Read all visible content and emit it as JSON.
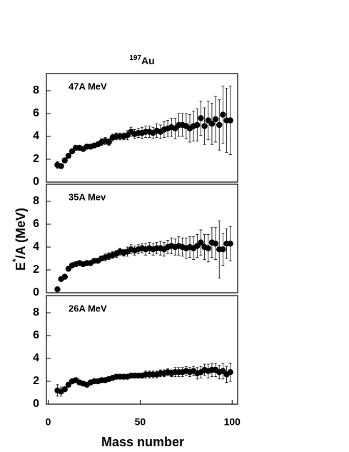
{
  "title_sup": "197",
  "title": "Au",
  "ylabel": [
    "E",
    "*",
    "/A (MeV)"
  ],
  "xlabel": "Mass number",
  "chart_data": [
    {
      "type": "scatter",
      "annotation": "47A MeV",
      "x": [
        5,
        7,
        9,
        11,
        13,
        15,
        17,
        19,
        21,
        23,
        25,
        27,
        29,
        31,
        33,
        35,
        37,
        39,
        41,
        43,
        45,
        47,
        49,
        51,
        53,
        55,
        57,
        59,
        61,
        63,
        65,
        67,
        69,
        71,
        73,
        75,
        77,
        79,
        81,
        83,
        85,
        87,
        89,
        91,
        93,
        95,
        97,
        99
      ],
      "values": [
        1.5,
        1.4,
        1.9,
        2.3,
        2.7,
        3.0,
        3.0,
        2.9,
        3.1,
        3.1,
        3.2,
        3.3,
        3.5,
        3.6,
        3.5,
        3.9,
        4.0,
        4.0,
        4.0,
        4.1,
        4.4,
        4.2,
        4.3,
        4.3,
        4.4,
        4.4,
        4.3,
        4.5,
        4.4,
        4.6,
        4.7,
        4.8,
        4.7,
        5.0,
        5.0,
        4.9,
        4.7,
        4.9,
        5.0,
        5.6,
        4.9,
        5.4,
        5.1,
        5.5,
        5.0,
        5.9,
        5.4,
        5.4
      ],
      "errors": [
        0.3,
        0.2,
        0.2,
        0.2,
        0.2,
        0.2,
        0.2,
        0.2,
        0.2,
        0.2,
        0.2,
        0.2,
        0.3,
        0.3,
        0.3,
        0.3,
        0.3,
        0.3,
        0.3,
        0.4,
        0.4,
        0.4,
        0.4,
        0.5,
        0.5,
        0.5,
        0.5,
        0.6,
        0.6,
        0.7,
        0.7,
        0.8,
        0.9,
        1.0,
        1.0,
        1.1,
        1.2,
        1.3,
        1.4,
        1.5,
        1.6,
        1.7,
        1.8,
        2.0,
        2.2,
        2.5,
        2.8,
        3.0
      ],
      "xlim": [
        -1,
        103
      ],
      "ylim": [
        0,
        9.5
      ],
      "yticks": [
        0,
        2,
        4,
        6,
        8
      ],
      "color": "#000000"
    },
    {
      "type": "scatter",
      "annotation": "35A Mev",
      "x": [
        5,
        7,
        9,
        11,
        13,
        15,
        17,
        19,
        21,
        23,
        25,
        27,
        29,
        31,
        33,
        35,
        37,
        39,
        41,
        43,
        45,
        47,
        49,
        51,
        53,
        55,
        57,
        59,
        61,
        63,
        65,
        67,
        69,
        71,
        73,
        75,
        77,
        79,
        81,
        83,
        85,
        87,
        89,
        91,
        93,
        95,
        97,
        99
      ],
      "values": [
        0.3,
        1.2,
        1.4,
        2.1,
        2.4,
        2.5,
        2.6,
        2.5,
        2.6,
        2.6,
        2.8,
        2.8,
        3.0,
        3.1,
        3.2,
        3.3,
        3.4,
        3.6,
        3.5,
        3.6,
        3.8,
        3.7,
        3.8,
        3.9,
        3.8,
        3.9,
        3.8,
        3.9,
        3.9,
        3.8,
        4.0,
        4.1,
        4.0,
        4.1,
        4.0,
        3.9,
        4.0,
        3.9,
        4.1,
        4.4,
        4.0,
        3.9,
        4.4,
        4.3,
        3.8,
        3.8,
        4.3,
        4.3
      ],
      "errors": [
        0.1,
        0.1,
        0.1,
        0.1,
        0.1,
        0.1,
        0.1,
        0.1,
        0.2,
        0.2,
        0.2,
        0.2,
        0.2,
        0.3,
        0.3,
        0.3,
        0.3,
        0.3,
        0.3,
        0.4,
        0.4,
        0.4,
        0.4,
        0.4,
        0.5,
        0.5,
        0.5,
        0.5,
        0.6,
        0.6,
        0.6,
        0.7,
        0.7,
        0.8,
        0.8,
        0.9,
        0.9,
        1.0,
        1.0,
        1.1,
        1.1,
        1.2,
        1.3,
        1.4,
        2.5,
        1.4,
        1.3,
        1.5
      ],
      "xlim": [
        -1,
        103
      ],
      "ylim": [
        0,
        9.5
      ],
      "yticks": [
        0,
        2,
        4,
        6,
        8
      ],
      "color": "#000000"
    },
    {
      "type": "scatter",
      "annotation": "26A MeV",
      "x": [
        5,
        7,
        9,
        11,
        13,
        15,
        17,
        19,
        21,
        23,
        25,
        27,
        29,
        31,
        33,
        35,
        37,
        39,
        41,
        43,
        45,
        47,
        49,
        51,
        53,
        55,
        57,
        59,
        61,
        63,
        65,
        67,
        69,
        71,
        73,
        75,
        77,
        79,
        81,
        83,
        85,
        87,
        89,
        91,
        93,
        95,
        97,
        99
      ],
      "values": [
        1.2,
        1.1,
        1.3,
        1.7,
        2.0,
        2.1,
        1.9,
        1.8,
        1.7,
        1.9,
        2.0,
        2.0,
        2.1,
        2.1,
        2.2,
        2.3,
        2.4,
        2.4,
        2.4,
        2.4,
        2.5,
        2.5,
        2.5,
        2.5,
        2.6,
        2.6,
        2.6,
        2.6,
        2.7,
        2.7,
        2.8,
        2.7,
        2.8,
        2.8,
        2.8,
        2.9,
        2.8,
        2.9,
        2.7,
        2.8,
        3.0,
        2.9,
        3.0,
        3.0,
        2.8,
        2.9,
        2.6,
        2.8
      ],
      "errors": [
        0.5,
        0.4,
        0.2,
        0.2,
        0.1,
        0.1,
        0.1,
        0.1,
        0.1,
        0.1,
        0.1,
        0.1,
        0.1,
        0.1,
        0.2,
        0.2,
        0.2,
        0.2,
        0.2,
        0.2,
        0.2,
        0.2,
        0.2,
        0.2,
        0.3,
        0.3,
        0.3,
        0.3,
        0.3,
        0.3,
        0.3,
        0.3,
        0.4,
        0.4,
        0.4,
        0.4,
        0.4,
        0.4,
        0.5,
        0.5,
        0.5,
        0.6,
        0.6,
        0.6,
        0.6,
        0.7,
        0.7,
        0.8
      ],
      "xlim": [
        -1,
        103
      ],
      "ylim": [
        0,
        9.5
      ],
      "yticks": [
        0,
        2,
        4,
        6,
        8
      ],
      "xticks": [
        0,
        50,
        100
      ],
      "color": "#000000"
    }
  ]
}
